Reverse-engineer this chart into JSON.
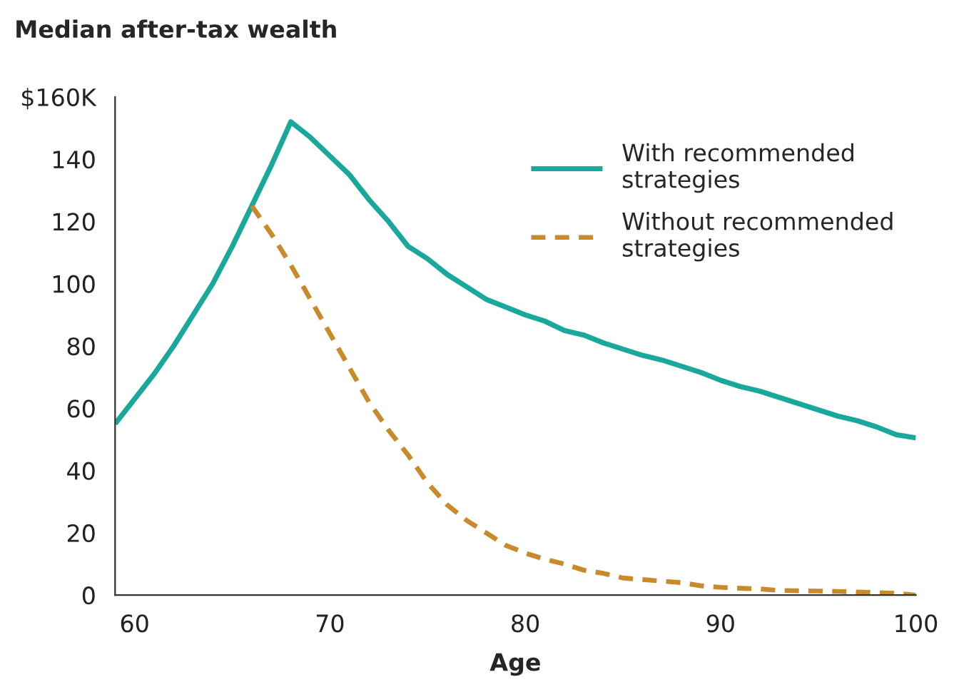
{
  "chart_data": {
    "type": "line",
    "title": "Median after-tax wealth",
    "xlabel": "Age",
    "xlim": [
      59,
      100
    ],
    "xticks": [
      60,
      70,
      80,
      90,
      100
    ],
    "ylim": [
      0,
      160
    ],
    "yticks": [
      0,
      20,
      40,
      60,
      80,
      100,
      120,
      {
        "value": 140,
        "label": "140"
      },
      {
        "value": 160,
        "label": "$160K"
      }
    ],
    "grid": false,
    "legend": "top right",
    "marker": "none",
    "series": [
      {
        "name": "With recommended strategies",
        "color": "#1aa89c",
        "line_style": "solid",
        "x": [
          59,
          60,
          61,
          62,
          63,
          64,
          65,
          66,
          67,
          68,
          69,
          70,
          71,
          72,
          73,
          74,
          75,
          76,
          77,
          78,
          79,
          80,
          81,
          82,
          83,
          84,
          85,
          86,
          87,
          88,
          89,
          90,
          91,
          92,
          93,
          94,
          95,
          96,
          97,
          98,
          99,
          100
        ],
        "values": [
          55,
          63,
          71,
          80,
          90,
          100,
          112,
          125,
          138,
          152,
          147,
          141,
          135,
          127,
          120,
          112,
          108,
          103,
          99,
          95,
          92.5,
          90,
          88,
          85,
          83.5,
          81,
          79,
          77,
          75.5,
          73.5,
          71.5,
          69,
          67,
          65.5,
          63.5,
          61.5,
          59.5,
          57.5,
          56,
          54,
          51.5,
          50.5
        ]
      },
      {
        "name": "Without recommended strategies",
        "color": "#c98a2b",
        "line_style": "dashed",
        "x": [
          66,
          67,
          68,
          69,
          70,
          71,
          72,
          73,
          74,
          75,
          76,
          77,
          78,
          79,
          80,
          81,
          82,
          83,
          84,
          85,
          86,
          87,
          88,
          89,
          90,
          91,
          92,
          93,
          94,
          95,
          96,
          97,
          98,
          99,
          100
        ],
        "values": [
          125,
          116,
          106,
          95,
          84,
          73,
          62,
          53,
          45,
          36,
          29,
          24,
          20,
          16,
          13.5,
          11.5,
          10,
          8,
          7,
          5.5,
          5,
          4.5,
          4,
          3,
          2.5,
          2.2,
          2,
          1.5,
          1.4,
          1.3,
          1.2,
          1,
          0.8,
          0.6,
          0
        ]
      }
    ]
  }
}
